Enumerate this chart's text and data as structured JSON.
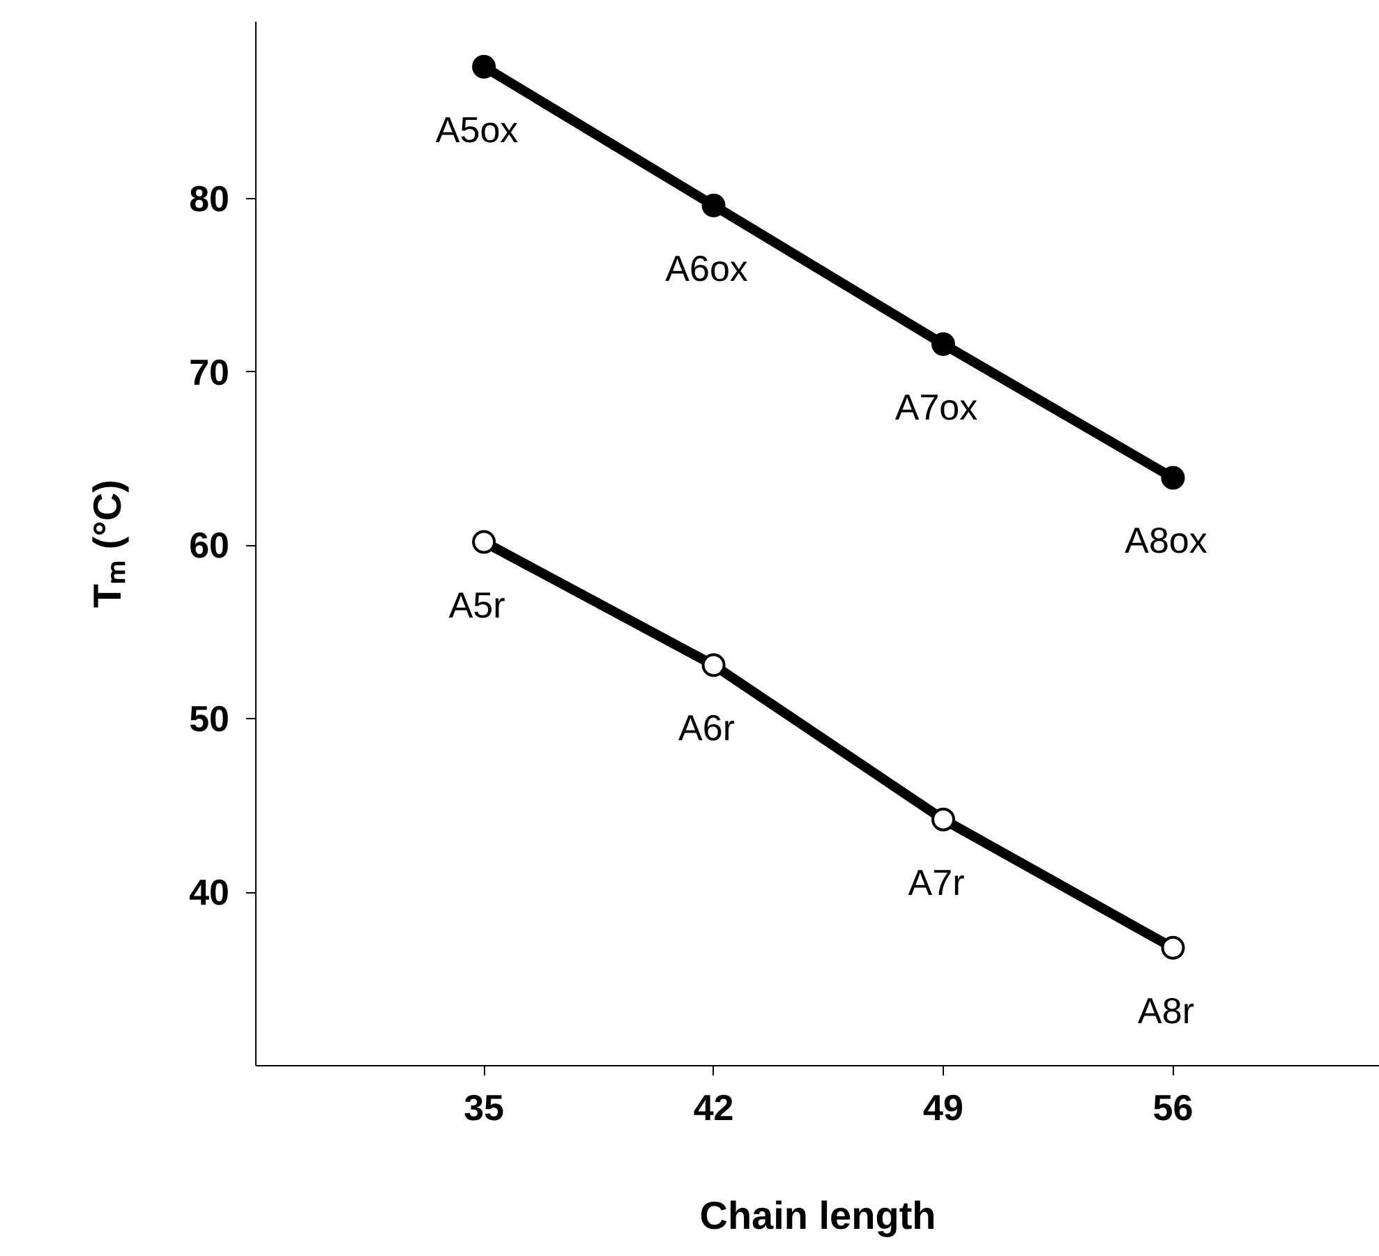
{
  "chart_data": {
    "type": "line",
    "xlabel": "Chain length",
    "ylabel": "Tₘ (°C)",
    "x": [
      35,
      42,
      49,
      56
    ],
    "series": [
      {
        "color": "#000000",
        "values": [
          87.6,
          79.6,
          71.6,
          63.9
        ],
        "marker": "circle"
      },
      {
        "color": "#000000",
        "values": [
          60.2,
          53.1,
          44.2,
          36.8
        ],
        "marker": "circle"
      }
    ],
    "xlim": [
      28.05,
      62.3
    ],
    "ylim": [
      30,
      90.2
    ],
    "xticks": [
      35,
      42,
      49,
      56
    ],
    "yticks": [
      40,
      50,
      60,
      70,
      80
    ],
    "grid": false,
    "line_style": "solid",
    "annotations": [
      {
        "text": "A5ox",
        "x": 35,
        "y": 87.6
      },
      {
        "text": "A6ox",
        "x": 42,
        "y": 79.6
      },
      {
        "text": "A7ox",
        "x": 49,
        "y": 71.6
      },
      {
        "text": "A8ox",
        "x": 56,
        "y": 63.9
      },
      {
        "text": "A5r",
        "x": 35,
        "y": 60.2
      },
      {
        "text": "A6r",
        "x": 42,
        "y": 53.1
      },
      {
        "text": "A7r",
        "x": 49,
        "y": 44.2
      },
      {
        "text": "A8r",
        "x": 56,
        "y": 36.8
      }
    ]
  }
}
